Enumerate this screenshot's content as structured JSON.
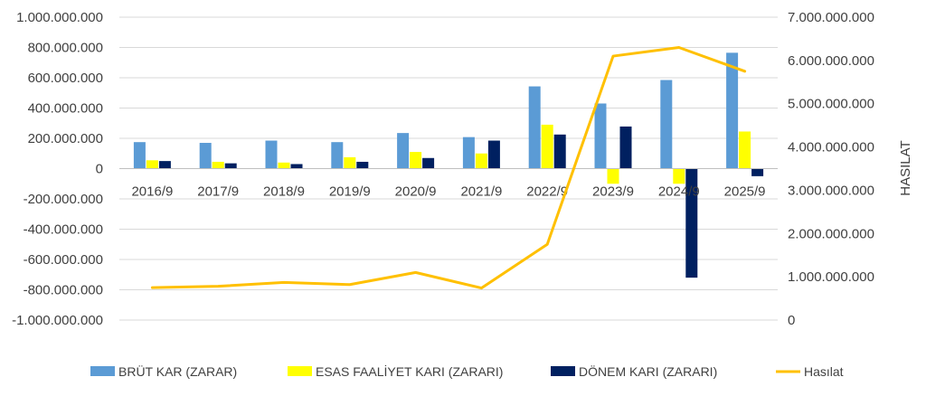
{
  "chart_data": {
    "type": "bar",
    "categories": [
      "2016/9",
      "2017/9",
      "2018/9",
      "2019/9",
      "2020/9",
      "2021/9",
      "2022/9",
      "2023/9",
      "2024/9",
      "2025/9"
    ],
    "series": [
      {
        "name": "BRÜT KAR (ZARAR)",
        "type": "bar",
        "axis": "left",
        "color": "#5B9BD5",
        "values": [
          175000000,
          170000000,
          185000000,
          175000000,
          235000000,
          208000000,
          543000000,
          430000000,
          585000000,
          765000000
        ]
      },
      {
        "name": "ESAS FAALİYET KARI (ZARARI)",
        "type": "bar",
        "axis": "left",
        "color": "#FFFF00",
        "values": [
          55000000,
          45000000,
          40000000,
          75000000,
          110000000,
          100000000,
          290000000,
          -100000000,
          -100000000,
          245000000
        ]
      },
      {
        "name": "DÖNEM KARI (ZARARI)",
        "type": "bar",
        "axis": "left",
        "color": "#002060",
        "values": [
          50000000,
          35000000,
          30000000,
          45000000,
          70000000,
          185000000,
          225000000,
          278000000,
          -720000000,
          -50000000
        ]
      },
      {
        "name": "Hasılat",
        "type": "line",
        "axis": "right",
        "color": "#FFC000",
        "values": [
          750000000,
          780000000,
          870000000,
          820000000,
          1100000000,
          740000000,
          1750000000,
          6100000000,
          6300000000,
          5750000000
        ]
      }
    ],
    "y_left": {
      "label": "",
      "min": -1000000000,
      "max": 1000000000,
      "step": 200000000,
      "ticks": [
        "1.000.000.000",
        "800.000.000",
        "600.000.000",
        "400.000.000",
        "200.000.000",
        "0",
        "-200.000.000",
        "-400.000.000",
        "-600.000.000",
        "-800.000.000",
        "-1.000.000.000"
      ]
    },
    "y_right": {
      "label": "HASILAT",
      "min": 0,
      "max": 7000000000,
      "step": 1000000000,
      "ticks": [
        "7.000.000.000",
        "6.000.000.000",
        "5.000.000.000",
        "4.000.000.000",
        "3.000.000.000",
        "2.000.000.000",
        "1.000.000.000",
        "0"
      ]
    },
    "grid": true,
    "legend": "bottom"
  }
}
